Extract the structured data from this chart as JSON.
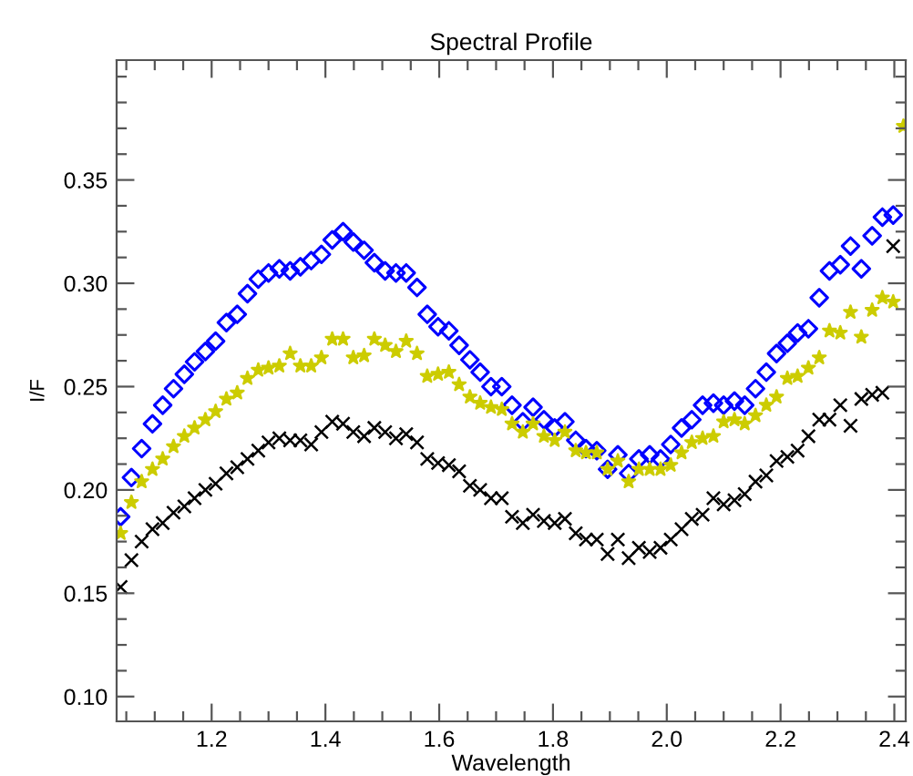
{
  "chart_data": {
    "type": "scatter",
    "title": "Spectral Profile",
    "xlabel": "Wavelength",
    "ylabel": "I/F",
    "x": [
      1.04,
      1.059,
      1.077,
      1.096,
      1.114,
      1.133,
      1.152,
      1.17,
      1.189,
      1.207,
      1.226,
      1.245,
      1.263,
      1.282,
      1.3,
      1.319,
      1.338,
      1.356,
      1.375,
      1.393,
      1.412,
      1.431,
      1.449,
      1.468,
      1.486,
      1.505,
      1.524,
      1.542,
      1.561,
      1.579,
      1.598,
      1.617,
      1.635,
      1.654,
      1.672,
      1.691,
      1.71,
      1.728,
      1.747,
      1.765,
      1.784,
      1.803,
      1.821,
      1.84,
      1.858,
      1.877,
      1.896,
      1.914,
      1.933,
      1.951,
      1.97,
      1.989,
      2.007,
      2.026,
      2.044,
      2.063,
      2.082,
      2.1,
      2.119,
      2.137,
      2.156,
      2.175,
      2.193,
      2.212,
      2.23,
      2.249,
      2.268,
      2.286,
      2.305,
      2.323,
      2.342,
      2.361,
      2.379,
      2.398,
      2.416
    ],
    "series": [
      {
        "color": "#0000ff",
        "marker": "diamond",
        "values": [
          0.187,
          0.206,
          0.22,
          0.232,
          0.241,
          0.249,
          0.256,
          0.262,
          0.267,
          0.272,
          0.281,
          0.285,
          0.295,
          0.302,
          0.305,
          0.307,
          0.306,
          0.308,
          0.311,
          0.314,
          0.321,
          0.325,
          0.32,
          0.316,
          0.31,
          0.306,
          0.305,
          0.305,
          0.298,
          0.285,
          0.279,
          0.277,
          0.27,
          0.263,
          0.257,
          0.25,
          0.25,
          0.241,
          0.233,
          0.24,
          0.234,
          0.23,
          0.233,
          0.224,
          0.22,
          0.219,
          0.21,
          0.217,
          0.208,
          0.215,
          0.217,
          0.215,
          0.222,
          0.23,
          0.234,
          0.241,
          0.242,
          0.241,
          0.243,
          0.241,
          0.249,
          0.257,
          0.266,
          0.271,
          0.276,
          0.278,
          0.293,
          0.306,
          0.309,
          0.318,
          0.307,
          0.323,
          0.332,
          0.333,
          null
        ]
      },
      {
        "color": "#cccc00",
        "marker": "star",
        "values": [
          0.179,
          0.194,
          0.204,
          0.21,
          0.215,
          0.221,
          0.226,
          0.23,
          0.234,
          0.238,
          0.244,
          0.247,
          0.254,
          0.258,
          0.259,
          0.26,
          0.266,
          0.26,
          0.26,
          0.264,
          0.273,
          0.273,
          0.264,
          0.265,
          0.273,
          0.27,
          0.267,
          0.272,
          0.266,
          0.255,
          0.256,
          0.257,
          0.251,
          0.245,
          0.242,
          0.24,
          0.239,
          0.232,
          0.228,
          0.232,
          0.226,
          0.224,
          0.228,
          0.219,
          0.218,
          0.218,
          0.21,
          0.214,
          0.204,
          0.21,
          0.21,
          0.21,
          0.212,
          0.218,
          0.223,
          0.225,
          0.226,
          0.233,
          0.234,
          0.232,
          0.236,
          0.241,
          0.245,
          0.254,
          0.255,
          0.259,
          0.264,
          0.277,
          0.276,
          0.286,
          0.274,
          0.287,
          0.293,
          0.291,
          0.376
        ]
      },
      {
        "color": "#000000",
        "marker": "cross",
        "values": [
          0.153,
          0.166,
          0.175,
          0.181,
          0.184,
          0.189,
          0.192,
          0.196,
          0.2,
          0.203,
          0.208,
          0.211,
          0.215,
          0.219,
          0.223,
          0.225,
          0.224,
          0.224,
          0.222,
          0.228,
          0.233,
          0.232,
          0.228,
          0.226,
          0.23,
          0.228,
          0.225,
          0.227,
          0.223,
          0.215,
          0.213,
          0.212,
          0.209,
          0.202,
          0.2,
          0.196,
          0.196,
          0.187,
          0.184,
          0.188,
          0.185,
          0.184,
          0.186,
          0.179,
          0.176,
          0.176,
          0.169,
          0.176,
          0.167,
          0.172,
          0.17,
          0.172,
          0.176,
          0.181,
          0.186,
          0.188,
          0.196,
          0.193,
          0.195,
          0.198,
          0.204,
          0.207,
          0.214,
          0.216,
          0.219,
          0.226,
          0.234,
          0.234,
          0.241,
          0.231,
          0.244,
          0.246,
          0.247,
          0.318,
          null
        ]
      }
    ],
    "xlim": [
      1.033,
      2.42
    ],
    "ylim": [
      0.088,
      0.408
    ],
    "xticks": [
      {
        "value": 1.05,
        "label": null
      },
      {
        "value": 1.1,
        "label": null
      },
      {
        "value": 1.15,
        "label": null
      },
      {
        "value": 1.2,
        "label": "1.2"
      },
      {
        "value": 1.25,
        "label": null
      },
      {
        "value": 1.3,
        "label": null
      },
      {
        "value": 1.35,
        "label": null
      },
      {
        "value": 1.4,
        "label": "1.4"
      },
      {
        "value": 1.45,
        "label": null
      },
      {
        "value": 1.5,
        "label": null
      },
      {
        "value": 1.55,
        "label": null
      },
      {
        "value": 1.6,
        "label": "1.6"
      },
      {
        "value": 1.65,
        "label": null
      },
      {
        "value": 1.7,
        "label": null
      },
      {
        "value": 1.75,
        "label": null
      },
      {
        "value": 1.8,
        "label": "1.8"
      },
      {
        "value": 1.85,
        "label": null
      },
      {
        "value": 1.9,
        "label": null
      },
      {
        "value": 1.95,
        "label": null
      },
      {
        "value": 2.0,
        "label": "2.0"
      },
      {
        "value": 2.05,
        "label": null
      },
      {
        "value": 2.1,
        "label": null
      },
      {
        "value": 2.15,
        "label": null
      },
      {
        "value": 2.2,
        "label": "2.2"
      },
      {
        "value": 2.25,
        "label": null
      },
      {
        "value": 2.3,
        "label": null
      },
      {
        "value": 2.35,
        "label": null
      },
      {
        "value": 2.4,
        "label": "2.4"
      }
    ],
    "yticks": [
      {
        "value": 0.1,
        "label": "0.10"
      },
      {
        "value": 0.1125,
        "label": null
      },
      {
        "value": 0.125,
        "label": null
      },
      {
        "value": 0.1375,
        "label": null
      },
      {
        "value": 0.15,
        "label": "0.15"
      },
      {
        "value": 0.1625,
        "label": null
      },
      {
        "value": 0.175,
        "label": null
      },
      {
        "value": 0.1875,
        "label": null
      },
      {
        "value": 0.2,
        "label": "0.20"
      },
      {
        "value": 0.2125,
        "label": null
      },
      {
        "value": 0.225,
        "label": null
      },
      {
        "value": 0.2375,
        "label": null
      },
      {
        "value": 0.25,
        "label": "0.25"
      },
      {
        "value": 0.2625,
        "label": null
      },
      {
        "value": 0.275,
        "label": null
      },
      {
        "value": 0.2875,
        "label": null
      },
      {
        "value": 0.3,
        "label": "0.30"
      },
      {
        "value": 0.3125,
        "label": null
      },
      {
        "value": 0.325,
        "label": null
      },
      {
        "value": 0.3375,
        "label": null
      },
      {
        "value": 0.35,
        "label": "0.35"
      },
      {
        "value": 0.3625,
        "label": null
      },
      {
        "value": 0.375,
        "label": null
      },
      {
        "value": 0.3875,
        "label": null
      },
      {
        "value": 0.4,
        "label": null
      }
    ]
  }
}
